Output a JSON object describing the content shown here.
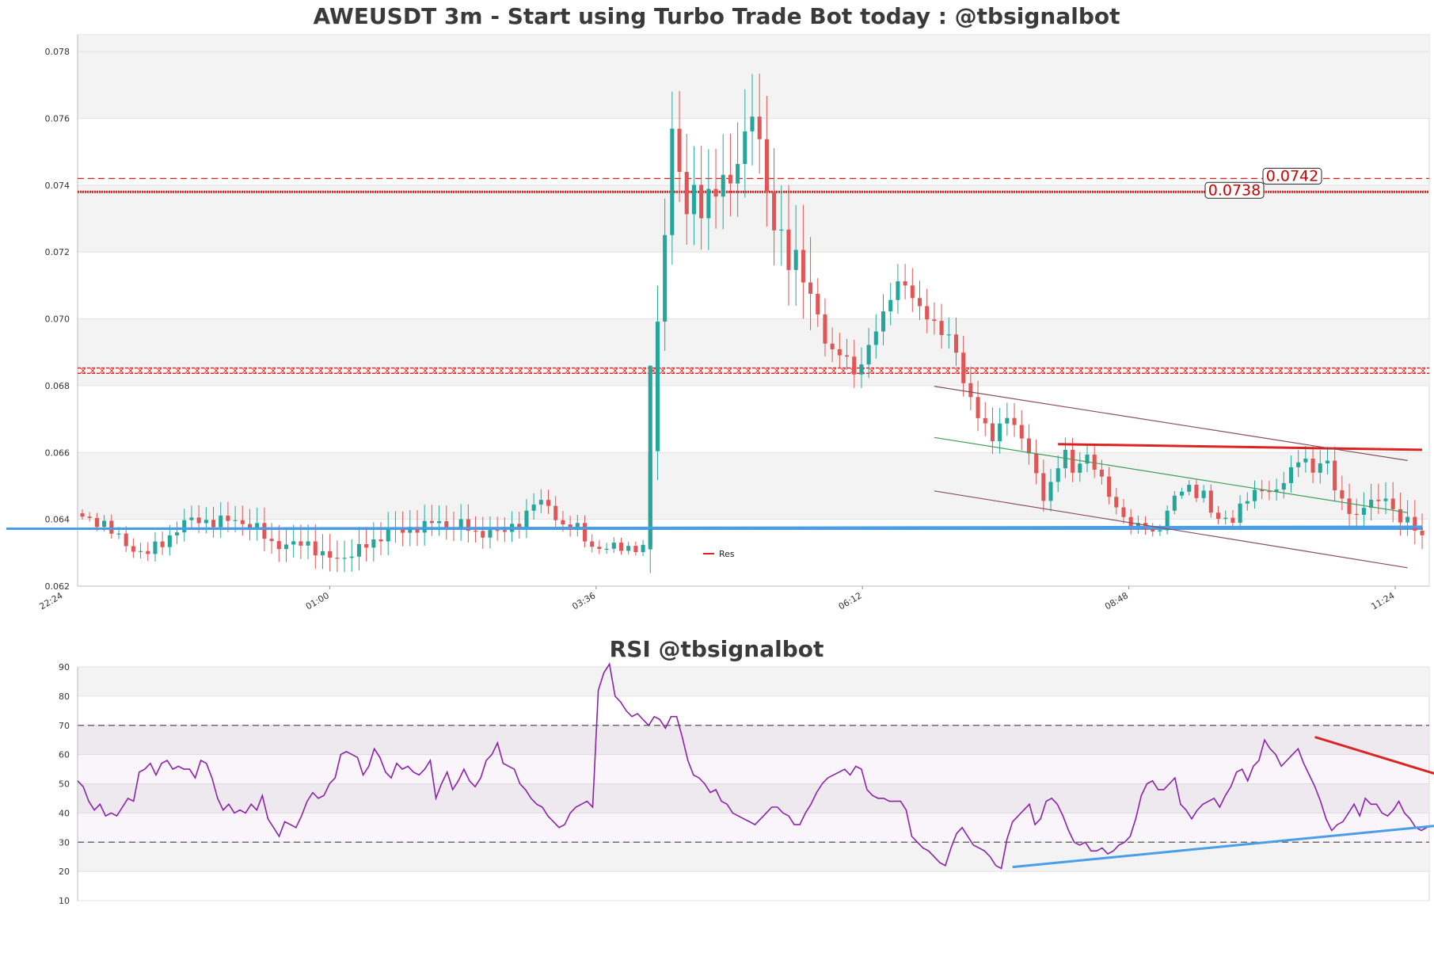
{
  "colors": {
    "up": "#26a69a",
    "down": "#e05555",
    "support": "#4a9ee8",
    "resistance": "#dd2222",
    "channel_upper": "#8a4d5e",
    "channel_mid": "#3aa05a",
    "rsi_line": "#8b22a8",
    "band": "#f3f3f3"
  },
  "chart_data": [
    {
      "type": "candlestick",
      "title": "AWEUSDT 3m - Start using Turbo Trade Bot today : @tbsignalbot",
      "ylim": [
        0.062,
        0.0785
      ],
      "yticks": [
        "0.062",
        "0.064",
        "0.066",
        "0.068",
        "0.070",
        "0.072",
        "0.074",
        "0.076",
        "0.078"
      ],
      "xticks": [
        "22:24",
        "01:00",
        "03:36",
        "06:12",
        "08:48",
        "11:24"
      ],
      "grid": true,
      "legend": {
        "entries": [
          "Res"
        ],
        "placement": "bottom-center"
      },
      "horizontal_levels": [
        {
          "value": 0.0742,
          "style": "dashed",
          "label": "0.0742"
        },
        {
          "value": 0.0738,
          "style": "dotted",
          "label": "0.0738"
        },
        {
          "value": 0.06853,
          "style": "crossed",
          "label": ""
        },
        {
          "value": 0.06837,
          "style": "crossed",
          "label": ""
        },
        {
          "value": 0.06372,
          "style": "solid-support",
          "label": ""
        }
      ],
      "close_path": [
        [
          0,
          0.064
        ],
        [
          3,
          0.0639
        ],
        [
          5,
          0.0634
        ],
        [
          7,
          0.0631
        ],
        [
          9,
          0.063
        ],
        [
          11,
          0.0633
        ],
        [
          14,
          0.0639
        ],
        [
          16,
          0.064
        ],
        [
          18,
          0.0639
        ],
        [
          21,
          0.064
        ],
        [
          24,
          0.0637
        ],
        [
          26,
          0.0633
        ],
        [
          28,
          0.0632
        ],
        [
          31,
          0.0633
        ],
        [
          33,
          0.0629
        ],
        [
          35,
          0.0628
        ],
        [
          37,
          0.063
        ],
        [
          40,
          0.0633
        ],
        [
          42,
          0.0637
        ],
        [
          44,
          0.0636
        ],
        [
          46,
          0.0638
        ],
        [
          48,
          0.0639
        ],
        [
          50,
          0.0638
        ],
        [
          52,
          0.0639
        ],
        [
          54,
          0.0635
        ],
        [
          56,
          0.0637
        ],
        [
          58,
          0.0636
        ],
        [
          60,
          0.0639
        ],
        [
          62,
          0.0645
        ],
        [
          64,
          0.0644
        ],
        [
          66,
          0.0638
        ],
        [
          68,
          0.0637
        ],
        [
          70,
          0.0632
        ],
        [
          72,
          0.0631
        ],
        [
          74,
          0.0632
        ],
        [
          77,
          0.0631
        ],
        [
          78,
          0.066
        ],
        [
          79,
          0.07
        ],
        [
          80,
          0.0725
        ],
        [
          81,
          0.0758
        ],
        [
          82,
          0.0742
        ],
        [
          83,
          0.0732
        ],
        [
          84,
          0.074
        ],
        [
          85,
          0.0731
        ],
        [
          86,
          0.0739
        ],
        [
          87,
          0.0735
        ],
        [
          88,
          0.0744
        ],
        [
          89,
          0.074
        ],
        [
          90,
          0.0748
        ],
        [
          91,
          0.0755
        ],
        [
          92,
          0.076
        ],
        [
          93,
          0.0754
        ],
        [
          94,
          0.0738
        ],
        [
          95,
          0.0728
        ],
        [
          96,
          0.0725
        ],
        [
          97,
          0.0715
        ],
        [
          98,
          0.072
        ],
        [
          99,
          0.0712
        ],
        [
          100,
          0.0708
        ],
        [
          101,
          0.07
        ],
        [
          102,
          0.0693
        ],
        [
          103,
          0.069
        ],
        [
          104,
          0.0691
        ],
        [
          105,
          0.0688
        ],
        [
          106,
          0.0683
        ],
        [
          107,
          0.0686
        ],
        [
          108,
          0.0692
        ],
        [
          109,
          0.0698
        ],
        [
          110,
          0.0701
        ],
        [
          111,
          0.0706
        ],
        [
          112,
          0.071
        ],
        [
          113,
          0.0711
        ],
        [
          114,
          0.0707
        ],
        [
          115,
          0.0703
        ],
        [
          116,
          0.07
        ],
        [
          117,
          0.0698
        ],
        [
          118,
          0.0697
        ],
        [
          119,
          0.0695
        ],
        [
          120,
          0.069
        ],
        [
          121,
          0.068
        ],
        [
          122,
          0.0676
        ],
        [
          123,
          0.0672
        ],
        [
          124,
          0.0668
        ],
        [
          125,
          0.0664
        ],
        [
          126,
          0.0667
        ],
        [
          127,
          0.0671
        ],
        [
          128,
          0.0669
        ],
        [
          129,
          0.0664
        ],
        [
          130,
          0.066
        ],
        [
          131,
          0.0652
        ],
        [
          132,
          0.0647
        ],
        [
          133,
          0.0651
        ],
        [
          134,
          0.0656
        ],
        [
          135,
          0.066
        ],
        [
          136,
          0.0653
        ],
        [
          137,
          0.0658
        ],
        [
          138,
          0.0659
        ],
        [
          139,
          0.0656
        ],
        [
          140,
          0.0651
        ],
        [
          141,
          0.0647
        ],
        [
          142,
          0.0644
        ],
        [
          143,
          0.0641
        ],
        [
          144,
          0.0638
        ],
        [
          145,
          0.0637
        ],
        [
          146,
          0.0638
        ],
        [
          147,
          0.0636
        ],
        [
          148,
          0.0638
        ],
        [
          149,
          0.0642
        ],
        [
          150,
          0.0646
        ],
        [
          151,
          0.0649
        ],
        [
          152,
          0.065
        ],
        [
          153,
          0.0648
        ],
        [
          154,
          0.0647
        ],
        [
          155,
          0.0642
        ],
        [
          156,
          0.064
        ],
        [
          157,
          0.0641
        ],
        [
          158,
          0.064
        ],
        [
          159,
          0.0643
        ],
        [
          160,
          0.0646
        ],
        [
          161,
          0.0648
        ],
        [
          162,
          0.065
        ],
        [
          163,
          0.0648
        ],
        [
          164,
          0.0648
        ],
        [
          165,
          0.0651
        ],
        [
          166,
          0.0655
        ],
        [
          167,
          0.0659
        ],
        [
          168,
          0.0657
        ],
        [
          169,
          0.0654
        ],
        [
          170,
          0.0656
        ],
        [
          171,
          0.0658
        ],
        [
          172,
          0.065
        ],
        [
          173,
          0.0645
        ],
        [
          174,
          0.0642
        ],
        [
          175,
          0.064
        ],
        [
          176,
          0.0645
        ],
        [
          177,
          0.0646
        ],
        [
          178,
          0.0645
        ],
        [
          179,
          0.0646
        ],
        [
          180,
          0.0642
        ],
        [
          181,
          0.0641
        ],
        [
          182,
          0.064
        ],
        [
          183,
          0.0637
        ],
        [
          184,
          0.0634
        ]
      ],
      "overlay_lines": [
        {
          "name": "Res",
          "from": [
            134,
            0.06625
          ],
          "to": [
            184,
            0.06608
          ]
        },
        {
          "name": "",
          "from": [
            0,
            0.06372
          ],
          "to": [
            184,
            0.06378
          ]
        },
        {
          "name": "",
          "from": [
            117,
            0.06798
          ],
          "to": [
            182,
            0.06576
          ]
        },
        {
          "name": "",
          "from": [
            117,
            0.06645
          ],
          "to": [
            182,
            0.0642
          ]
        },
        {
          "name": "",
          "from": [
            117,
            0.06485
          ],
          "to": [
            182,
            0.06255
          ]
        }
      ]
    },
    {
      "type": "line",
      "title": "RSI @tbsignalbot",
      "ylim": [
        10,
        90
      ],
      "yticks": [
        "10",
        "20",
        "30",
        "40",
        "50",
        "60",
        "70",
        "80",
        "90"
      ],
      "reference_lines": [
        30,
        70
      ],
      "values": [
        51,
        49,
        44,
        41,
        43,
        39,
        40,
        39,
        42,
        45,
        44,
        54,
        55,
        57,
        53,
        57,
        58,
        55,
        56,
        55,
        55,
        52,
        58,
        57,
        52,
        45,
        41,
        43,
        40,
        41,
        40,
        43,
        41,
        46,
        38,
        35,
        32,
        37,
        36,
        35,
        39,
        44,
        47,
        45,
        46,
        50,
        52,
        60,
        61,
        60,
        59,
        53,
        56,
        62,
        59,
        54,
        52,
        57,
        55,
        56,
        54,
        53,
        55,
        58,
        45,
        50,
        54,
        48,
        51,
        55,
        51,
        49,
        52,
        58,
        60,
        64,
        57,
        56,
        55,
        50,
        48,
        45,
        43,
        42,
        39,
        37,
        35,
        36,
        40,
        42,
        43,
        44,
        42,
        82,
        88,
        91,
        80,
        78,
        75,
        73,
        74,
        72,
        70,
        73,
        72,
        69,
        73,
        73,
        66,
        58,
        53,
        52,
        50,
        47,
        48,
        44,
        43,
        40,
        39,
        38,
        37,
        36,
        38,
        40,
        42,
        42,
        40,
        39,
        36,
        36,
        40,
        43,
        47,
        50,
        52,
        53,
        54,
        55,
        53,
        56,
        55,
        48,
        46,
        45,
        45,
        44,
        44,
        44,
        41,
        32,
        30,
        28,
        27,
        25,
        23,
        22,
        28,
        33,
        35,
        32,
        29,
        28,
        27,
        25,
        22,
        21,
        31,
        37,
        39,
        41,
        43,
        36,
        38,
        44,
        45,
        43,
        39,
        34,
        30,
        29,
        30,
        27,
        27,
        28,
        26,
        27,
        29,
        30,
        32,
        38,
        46,
        50,
        51,
        48,
        48,
        50,
        52,
        43,
        41,
        38,
        41,
        43,
        44,
        45,
        42,
        46,
        49,
        54,
        55,
        51,
        56,
        58,
        65,
        62,
        60,
        56,
        58,
        60,
        62,
        57,
        53,
        49,
        44,
        38,
        34,
        36,
        37,
        40,
        43,
        39,
        45,
        43,
        43,
        40,
        39,
        41,
        44,
        40,
        38,
        35,
        34,
        35
      ],
      "trend_lines": [
        {
          "from": [
            221,
            66
          ],
          "to": [
            250,
            49
          ]
        },
        {
          "from": [
            167,
            21.5
          ],
          "to": [
            250,
            37
          ]
        }
      ]
    }
  ]
}
